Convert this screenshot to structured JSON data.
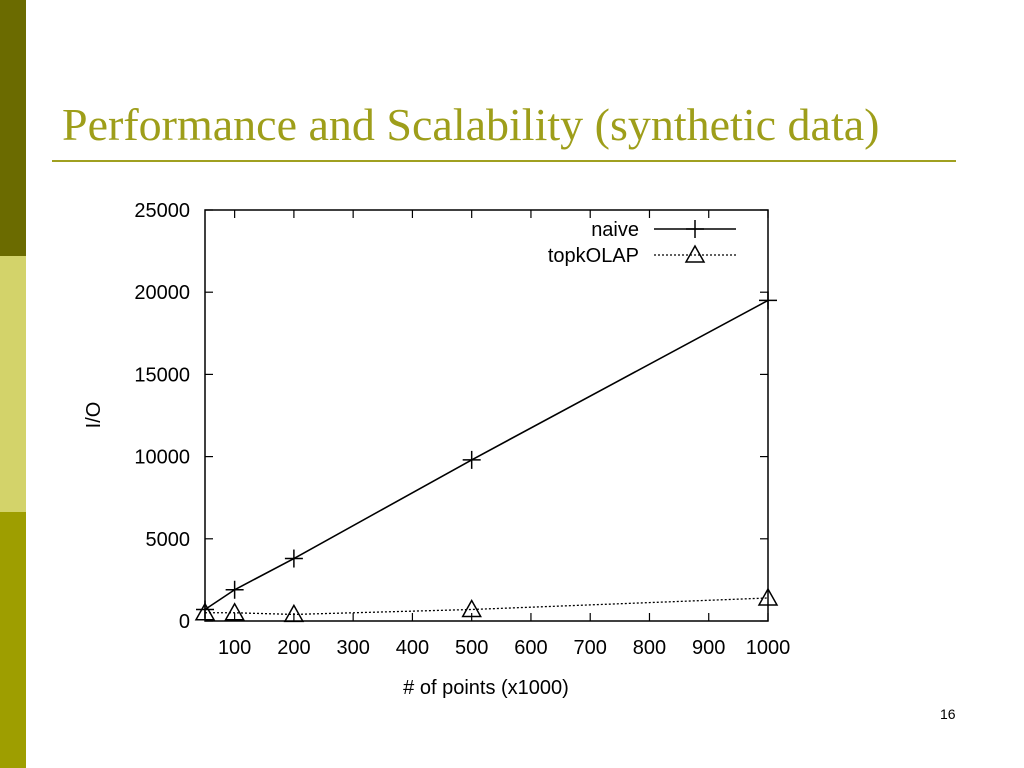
{
  "slide": {
    "title": "Performance and Scalability (synthetic data)",
    "page_number": "16",
    "colors": {
      "title": "#9e9e1a",
      "rule": "#a0a020",
      "sidebar_top": "#6b6b00",
      "sidebar_mid": "#d3d36a",
      "sidebar_bottom": "#9e9e00"
    }
  },
  "chart_data": {
    "type": "line",
    "xlabel": "# of points (x1000)",
    "ylabel": "I/O",
    "xlim": [
      50,
      1000
    ],
    "ylim": [
      0,
      25000
    ],
    "x_ticks": [
      100,
      200,
      300,
      400,
      500,
      600,
      700,
      800,
      900,
      1000
    ],
    "y_ticks": [
      0,
      5000,
      10000,
      15000,
      20000,
      25000
    ],
    "legend_position": "top-right",
    "grid": false,
    "series": [
      {
        "name": "naive",
        "marker": "plus",
        "line": "solid",
        "points": [
          [
            50,
            700
          ],
          [
            100,
            1900
          ],
          [
            200,
            3800
          ],
          [
            500,
            9800
          ],
          [
            1000,
            19500
          ]
        ]
      },
      {
        "name": "topkOLAP",
        "marker": "triangle",
        "line": "dotted",
        "points": [
          [
            50,
            500
          ],
          [
            100,
            500
          ],
          [
            200,
            400
          ],
          [
            500,
            700
          ],
          [
            1000,
            1400
          ]
        ]
      }
    ]
  }
}
